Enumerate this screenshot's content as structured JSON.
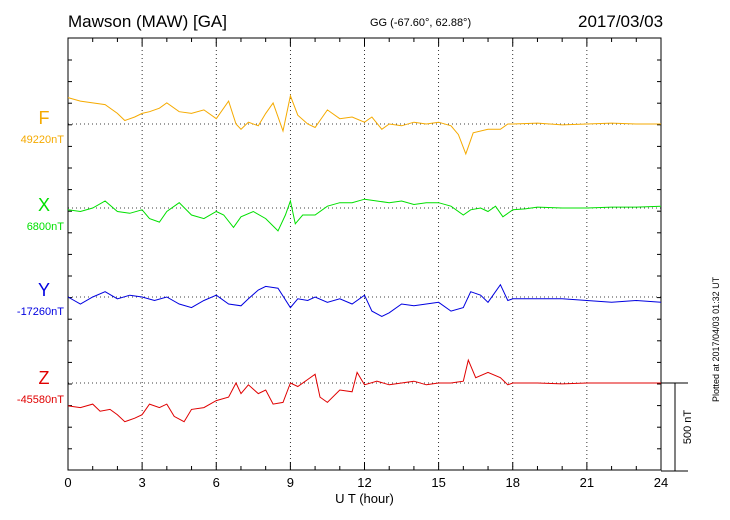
{
  "header": {
    "station": "Mawson (MAW)  [GA]",
    "coords": "GG (-67.60°,  62.88°)",
    "date": "2017/03/03"
  },
  "side_note": "Plotted at 2017/04/03 01:32 UT",
  "chart_data": {
    "type": "line",
    "xlabel": "U T (hour)",
    "xlim": [
      0,
      24
    ],
    "x_ticks": [
      0,
      3,
      6,
      9,
      12,
      15,
      18,
      21,
      24
    ],
    "x_tick_labels": [
      "0",
      "3",
      "6",
      "9",
      "12",
      "15",
      "18",
      "21",
      "24"
    ],
    "scale_bar_label": "500 nT",
    "scale_bar_value_nT": 500,
    "series": [
      {
        "name": "F",
        "baseline_label": "49220nT",
        "baseline_nT": 49220,
        "color": "#f5aa00",
        "points": [
          [
            0,
            150
          ],
          [
            0.5,
            130
          ],
          [
            1,
            120
          ],
          [
            1.5,
            110
          ],
          [
            2,
            60
          ],
          [
            2.3,
            20
          ],
          [
            2.7,
            40
          ],
          [
            3,
            60
          ],
          [
            3.3,
            70
          ],
          [
            3.7,
            90
          ],
          [
            4,
            120
          ],
          [
            4.5,
            70
          ],
          [
            5,
            60
          ],
          [
            5.5,
            80
          ],
          [
            6,
            30
          ],
          [
            6.5,
            130
          ],
          [
            6.8,
            0
          ],
          [
            7,
            -30
          ],
          [
            7.3,
            10
          ],
          [
            7.7,
            -10
          ],
          [
            8,
            60
          ],
          [
            8.3,
            120
          ],
          [
            8.7,
            -40
          ],
          [
            9,
            160
          ],
          [
            9.3,
            50
          ],
          [
            9.7,
            0
          ],
          [
            10,
            -20
          ],
          [
            10.5,
            80
          ],
          [
            11,
            30
          ],
          [
            11.5,
            40
          ],
          [
            12,
            10
          ],
          [
            12.3,
            40
          ],
          [
            12.7,
            -30
          ],
          [
            13,
            0
          ],
          [
            13.5,
            -10
          ],
          [
            14,
            10
          ],
          [
            14.5,
            0
          ],
          [
            15,
            10
          ],
          [
            15.5,
            -10
          ],
          [
            15.8,
            -60
          ],
          [
            16.1,
            -170
          ],
          [
            16.4,
            -50
          ],
          [
            17,
            -30
          ],
          [
            17.5,
            -30
          ],
          [
            17.8,
            0
          ],
          [
            18,
            0
          ],
          [
            19,
            5
          ],
          [
            20,
            -5
          ],
          [
            21,
            0
          ],
          [
            22,
            5
          ],
          [
            23,
            0
          ],
          [
            24,
            0
          ]
        ]
      },
      {
        "name": "X",
        "baseline_label": "6800nT",
        "baseline_nT": 6800,
        "color": "#00e000",
        "points": [
          [
            0,
            -10
          ],
          [
            0.5,
            -20
          ],
          [
            1,
            0
          ],
          [
            1.5,
            40
          ],
          [
            2,
            -20
          ],
          [
            2.5,
            -30
          ],
          [
            3,
            -10
          ],
          [
            3.3,
            -60
          ],
          [
            3.7,
            -80
          ],
          [
            4,
            -20
          ],
          [
            4.5,
            30
          ],
          [
            5,
            -40
          ],
          [
            5.5,
            -60
          ],
          [
            6,
            -20
          ],
          [
            6.3,
            -40
          ],
          [
            6.7,
            -110
          ],
          [
            7,
            -50
          ],
          [
            7.5,
            -20
          ],
          [
            8,
            -60
          ],
          [
            8.5,
            -130
          ],
          [
            8.8,
            -40
          ],
          [
            9,
            40
          ],
          [
            9.2,
            -90
          ],
          [
            9.5,
            -40
          ],
          [
            10,
            -40
          ],
          [
            10.5,
            10
          ],
          [
            11,
            30
          ],
          [
            11.5,
            30
          ],
          [
            12,
            50
          ],
          [
            12.5,
            40
          ],
          [
            13,
            30
          ],
          [
            13.5,
            40
          ],
          [
            14,
            20
          ],
          [
            14.5,
            30
          ],
          [
            15,
            30
          ],
          [
            15.5,
            10
          ],
          [
            16,
            -40
          ],
          [
            16.3,
            -10
          ],
          [
            16.7,
            0
          ],
          [
            17,
            -20
          ],
          [
            17.3,
            10
          ],
          [
            17.6,
            -50
          ],
          [
            18,
            -10
          ],
          [
            18.5,
            -5
          ],
          [
            19,
            5
          ],
          [
            20,
            0
          ],
          [
            21,
            0
          ],
          [
            22,
            5
          ],
          [
            23,
            5
          ],
          [
            24,
            10
          ]
        ]
      },
      {
        "name": "Y",
        "baseline_label": "-17260nT",
        "baseline_nT": -17260,
        "color": "#0000e0",
        "points": [
          [
            0,
            0
          ],
          [
            0.5,
            -40
          ],
          [
            1,
            0
          ],
          [
            1.5,
            30
          ],
          [
            2,
            -10
          ],
          [
            2.5,
            10
          ],
          [
            3,
            0
          ],
          [
            3.5,
            -20
          ],
          [
            4,
            0
          ],
          [
            4.5,
            -40
          ],
          [
            5,
            -60
          ],
          [
            5.5,
            -20
          ],
          [
            6,
            10
          ],
          [
            6.5,
            -40
          ],
          [
            7,
            -50
          ],
          [
            7.3,
            -10
          ],
          [
            7.7,
            40
          ],
          [
            8,
            60
          ],
          [
            8.5,
            50
          ],
          [
            9,
            -60
          ],
          [
            9.3,
            -10
          ],
          [
            9.7,
            -20
          ],
          [
            10,
            0
          ],
          [
            10.5,
            -30
          ],
          [
            11,
            -10
          ],
          [
            11.5,
            -40
          ],
          [
            12,
            10
          ],
          [
            12.3,
            -80
          ],
          [
            12.7,
            -110
          ],
          [
            13,
            -90
          ],
          [
            13.5,
            -40
          ],
          [
            14,
            -50
          ],
          [
            14.5,
            -40
          ],
          [
            15,
            -30
          ],
          [
            15.5,
            -80
          ],
          [
            16,
            -60
          ],
          [
            16.3,
            30
          ],
          [
            16.7,
            10
          ],
          [
            17,
            -30
          ],
          [
            17.5,
            70
          ],
          [
            17.8,
            -20
          ],
          [
            18,
            -10
          ],
          [
            19,
            -10
          ],
          [
            20,
            -10
          ],
          [
            21,
            -20
          ],
          [
            22,
            -30
          ],
          [
            23,
            -20
          ],
          [
            24,
            -30
          ]
        ]
      },
      {
        "name": "Z",
        "baseline_label": "-45580nT",
        "baseline_nT": -45580,
        "color": "#e00000",
        "points": [
          [
            0,
            -130
          ],
          [
            0.5,
            -140
          ],
          [
            1,
            -120
          ],
          [
            1.3,
            -160
          ],
          [
            1.7,
            -150
          ],
          [
            2,
            -180
          ],
          [
            2.3,
            -220
          ],
          [
            2.7,
            -200
          ],
          [
            3,
            -180
          ],
          [
            3.3,
            -120
          ],
          [
            3.7,
            -140
          ],
          [
            4,
            -120
          ],
          [
            4.3,
            -190
          ],
          [
            4.7,
            -220
          ],
          [
            5,
            -150
          ],
          [
            5.5,
            -140
          ],
          [
            6,
            -100
          ],
          [
            6.5,
            -80
          ],
          [
            6.8,
            0
          ],
          [
            7,
            -60
          ],
          [
            7.3,
            -10
          ],
          [
            7.7,
            -60
          ],
          [
            8,
            -40
          ],
          [
            8.3,
            -120
          ],
          [
            8.7,
            -110
          ],
          [
            9,
            0
          ],
          [
            9.3,
            -20
          ],
          [
            9.7,
            20
          ],
          [
            10,
            50
          ],
          [
            10.2,
            -80
          ],
          [
            10.5,
            -110
          ],
          [
            11,
            -40
          ],
          [
            11.5,
            -50
          ],
          [
            11.7,
            60
          ],
          [
            12,
            -10
          ],
          [
            12.5,
            10
          ],
          [
            13,
            -10
          ],
          [
            13.5,
            0
          ],
          [
            14,
            10
          ],
          [
            14.5,
            -10
          ],
          [
            15,
            0
          ],
          [
            15.5,
            0
          ],
          [
            16,
            10
          ],
          [
            16.2,
            130
          ],
          [
            16.5,
            30
          ],
          [
            17,
            60
          ],
          [
            17.5,
            30
          ],
          [
            17.8,
            -10
          ],
          [
            18,
            0
          ],
          [
            19,
            0
          ],
          [
            20,
            -5
          ],
          [
            21,
            0
          ],
          [
            22,
            0
          ],
          [
            23,
            0
          ],
          [
            24,
            0
          ]
        ]
      }
    ]
  }
}
